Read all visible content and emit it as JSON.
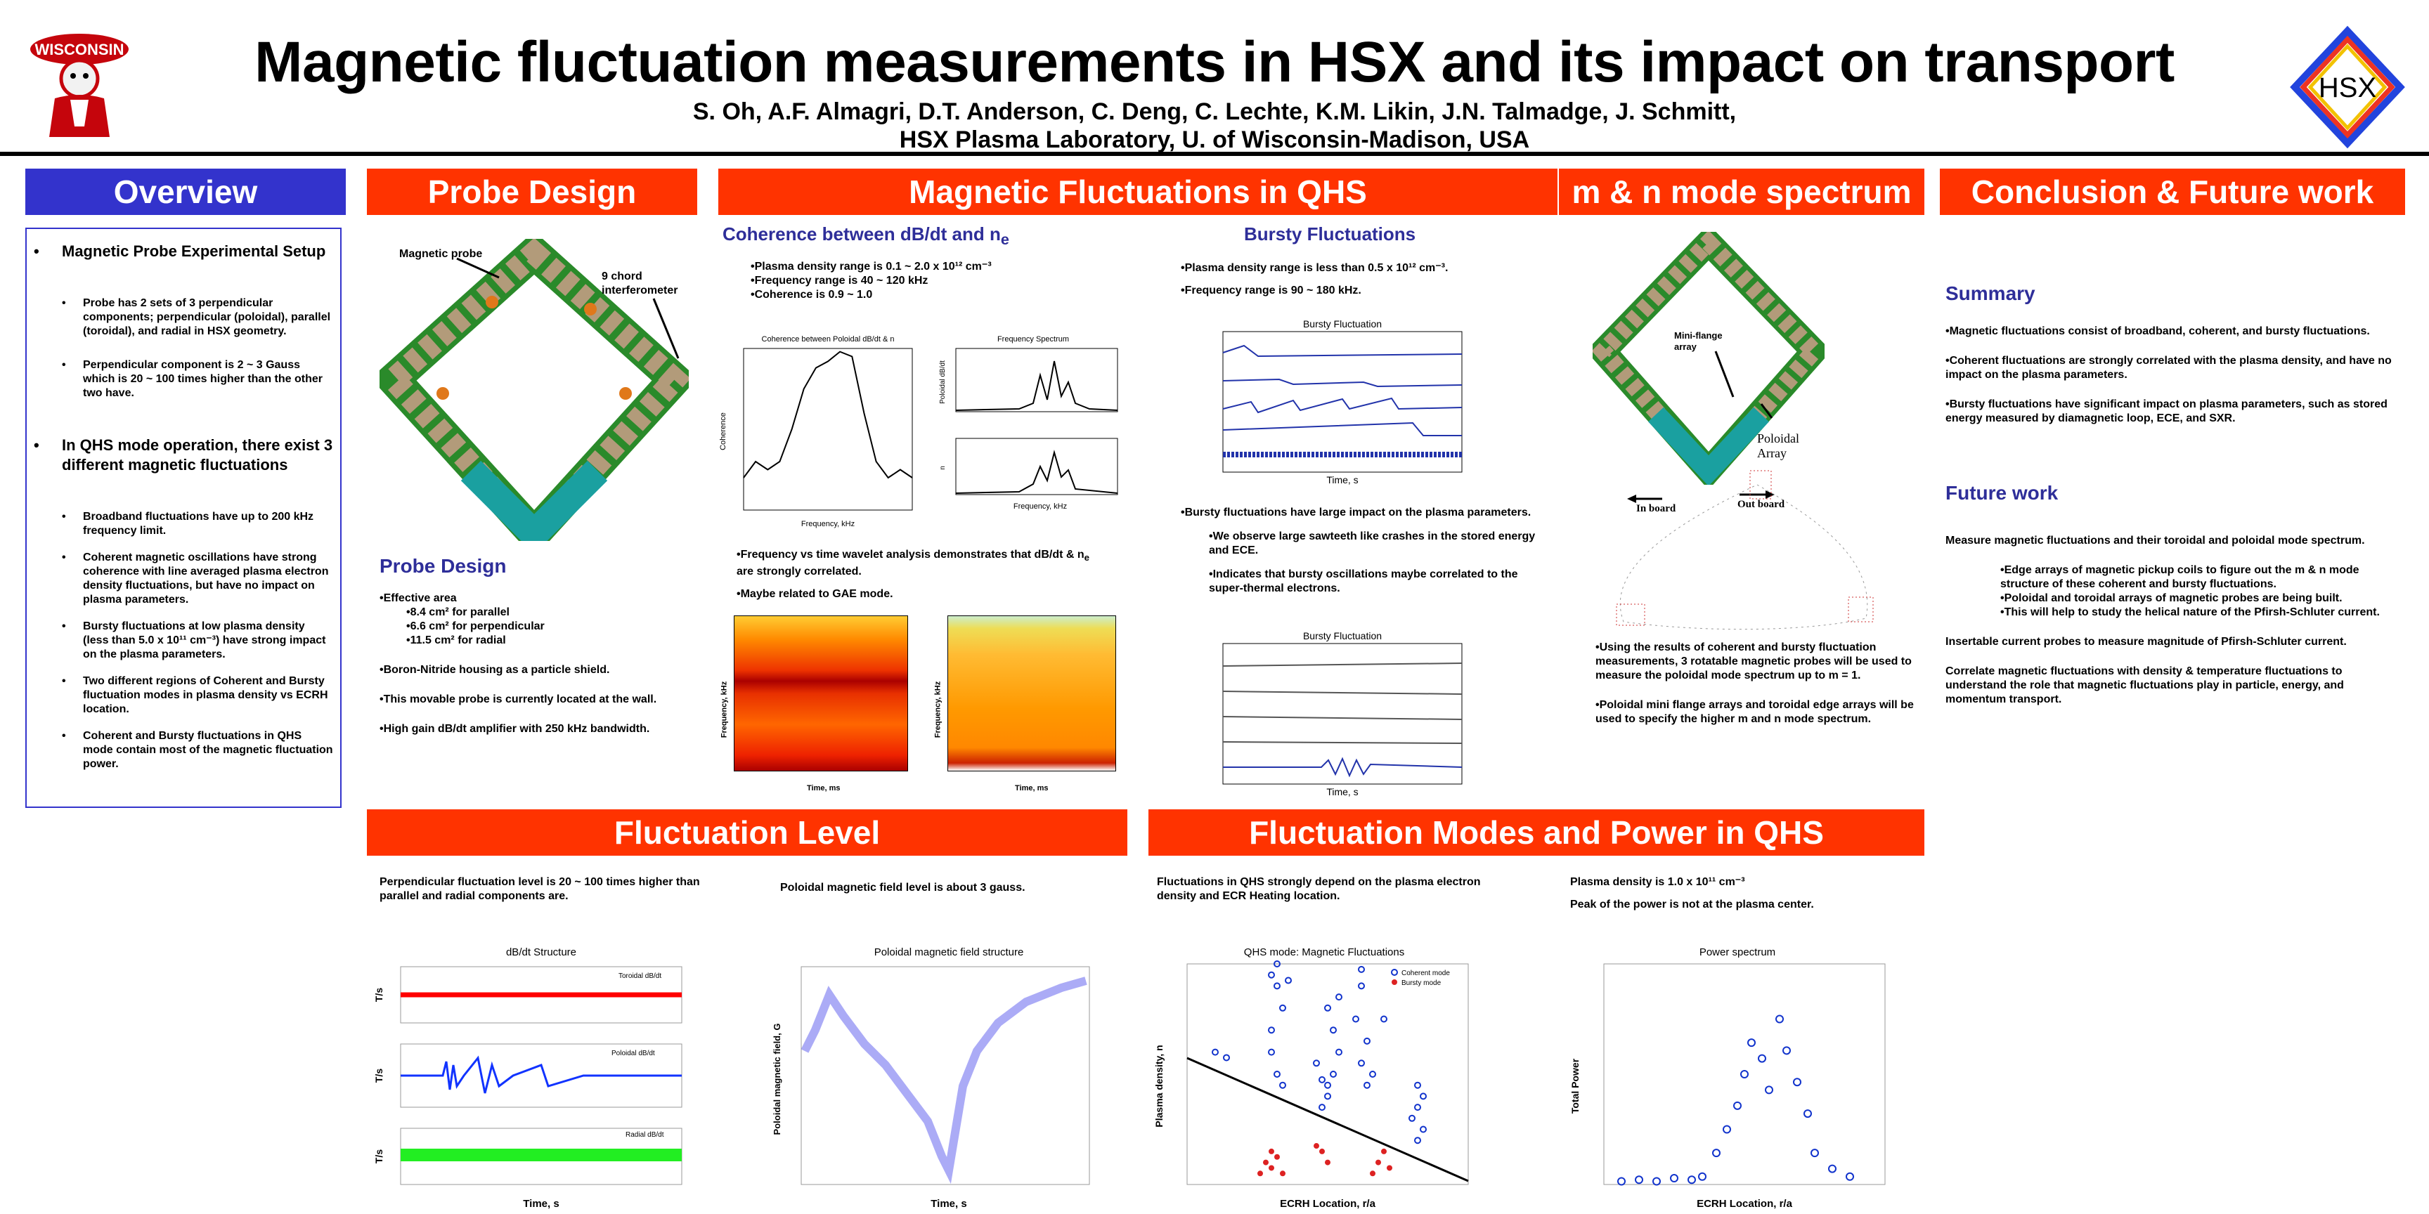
{
  "header": {
    "title": "Magnetic fluctuation measurements in HSX and its impact on transport",
    "authors": "S. Oh, A.F. Almagri, D.T. Anderson, C. Deng, C. Lechte, K.M. Likin, J.N. Talmadge, J. Schmitt,",
    "affiliation": "HSX Plasma Laboratory, U. of Wisconsin-Madison, USA",
    "logo_left_text": "WISCONSIN",
    "logo_right_text": "HSX"
  },
  "sections": {
    "overview": "Overview",
    "probe": "Probe Design",
    "qhs": "Magnetic Fluctuations in QHS",
    "mn": "m & n mode spectrum",
    "concl": "Conclusion & Future work",
    "level": "Fluctuation Level",
    "modes": "Fluctuation Modes and Power in QHS"
  },
  "overview": {
    "h1": "Magnetic Probe Experimental Setup",
    "b1": "Probe has 2 sets of 3 perpendicular components; perpendicular (poloidal), parallel (toroidal), and radial in HSX geometry.",
    "b2": "Perpendicular component is 2 ~ 3 Gauss which is 20 ~ 100 times higher than the other two have.",
    "h2": "In QHS mode operation, there exist 3 different magnetic fluctuations",
    "b3": "Broadband fluctuations have up to 200 kHz frequency limit.",
    "b4": "Coherent magnetic oscillations have strong coherence with line averaged plasma electron density fluctuations, but have no impact on plasma parameters.",
    "b5": "Bursty fluctuations at low plasma density (less than 5.0 x 10¹¹ cm⁻³) have strong impact on the plasma parameters.",
    "b6": "Two different regions of Coherent and Bursty fluctuation modes in plasma density vs ECRH location.",
    "b7": "Coherent and Bursty fluctuations in QHS mode contain most of the magnetic fluctuation power."
  },
  "probe": {
    "label_probe": "Magnetic probe",
    "label_chord": "9 chord interferometer",
    "sub": "Probe Design",
    "area": "•Effective area",
    "a1": "•8.4 cm² for parallel",
    "a2": "•6.6 cm² for perpendicular",
    "a3": "•11.5 cm² for radial",
    "p1": "•Boron-Nitride housing as a particle shield.",
    "p2": "•This movable probe is currently located at the wall.",
    "p3": "•High gain dB/dt amplifier with 250 kHz bandwidth."
  },
  "qhs": {
    "sub1": "Coherence between dB/dt and n",
    "sub1_sub": "e",
    "c1": "•Plasma density range is 0.1 ~ 2.0 x 10¹² cm⁻³",
    "c2": "•Frequency range is 40 ~ 120 kHz",
    "c3": "•Coherence is 0.9 ~ 1.0",
    "w1": "•Frequency vs time wavelet analysis demonstrates that dB/dt & n",
    "w1_sub": "e",
    "w2": "are strongly correlated.",
    "w3": "•Maybe related to GAE mode.",
    "coh_title": "Coherence between Poloidal dB/dt & n",
    "coh_xlabel": "Frequency, kHz",
    "coh_ylabel": "Coherence",
    "fs_title": "Frequency Spectrum",
    "fs_xlabel": "Frequency, kHz",
    "fs_ylabel1": "Poloidal dB/dt",
    "fs_ylabel2": "n",
    "wav_xlabel": "Time, ms",
    "wav_ylabel": "Frequency, kHz",
    "sub2": "Bursty Fluctuations",
    "d1": "•Plasma density range is less than 0.5 x 10¹² cm⁻³.",
    "d2": "•Frequency range is 90 ~ 180 kHz.",
    "burst_title": "Bursty Fluctuation",
    "burst_xlabel": "Time, s",
    "e1": "•Bursty fluctuations have large impact on the plasma parameters.",
    "e2": "•We observe large sawteeth like crashes in the stored energy and ECE.",
    "e3": "•Indicates that bursty oscillations maybe correlated to the super-thermal electrons."
  },
  "mn": {
    "label_mini": "Mini-flange array",
    "label_pol": "Poloidal Array",
    "label_in": "In board",
    "label_out": "Out board",
    "t1": "•Using the results of coherent and bursty fluctuation measurements, 3 rotatable magnetic probes will be used to measure the poloidal mode spectrum up to m = 1.",
    "t2": "•Poloidal mini flange arrays and toroidal edge arrays will be used to specify the higher m and n mode spectrum."
  },
  "concl": {
    "sub1": "Summary",
    "s1": "•Magnetic fluctuations consist of broadband, coherent, and bursty fluctuations.",
    "s2": "•Coherent fluctuations are strongly correlated with the plasma density, and have no impact on the plasma parameters.",
    "s3": "•Bursty fluctuations have significant impact on plasma parameters, such as stored energy measured by diamagnetic loop, ECE, and SXR.",
    "sub2": "Future work",
    "f1": "Measure magnetic fluctuations and their toroidal and poloidal mode spectrum.",
    "f2": "•Edge arrays of magnetic pickup coils to figure out the m & n mode structure of these coherent and bursty fluctuations.",
    "f3": "•Poloidal and toroidal arrays of magnetic probes are being built.",
    "f4": "•This will help to study the helical nature of the Pfirsh-Schluter current.",
    "f5": "Insertable current probes to measure magnitude of Pfirsh-Schluter current.",
    "f6": "Correlate magnetic fluctuations with density & temperature fluctuations to understand the role that magnetic fluctuations play in particle, energy, and momentum transport."
  },
  "level": {
    "t1": "Perpendicular fluctuation level is 20 ~ 100 times higher than parallel and radial components are.",
    "t2": "Poloidal magnetic field level is about 3 gauss.",
    "dbdt_title": "dB/dt Structure",
    "leg1": "Toroidal dB/dt",
    "leg2": "Poloidal dB/dt",
    "leg3": "Radial dB/dt",
    "ylab": "T/s",
    "xlab": "Time, s",
    "pol_title": "Poloidal magnetic field structure",
    "pol_ylabel": "Poloidal magnetic field, G",
    "pol_xlabel": "Time, s"
  },
  "modes": {
    "t1": "Fluctuations in QHS strongly depend on the plasma electron density and ECR Heating location.",
    "t2": "Plasma density is 1.0 x 10¹¹ cm⁻³",
    "t3": "Peak of the power is not at the plasma center.",
    "qhs_title": "QHS mode: Magnetic Fluctuations",
    "qhs_xlabel": "ECRH Location, r/a",
    "qhs_ylabel": "Plasma density, n",
    "leg_coh": "Coherent mode",
    "leg_bur": "Bursty mode",
    "pow_title": "Power spectrum",
    "pow_xlabel": "ECRH Location, r/a",
    "pow_ylabel": "Total Power"
  },
  "colors": {
    "blue_bar": "#3333cc",
    "red_bar": "#ff3300",
    "subhead": "#2e2e99"
  },
  "chart_data": [
    {
      "type": "line",
      "title": "Coherence between Poloidal dB/dt & n",
      "xlabel": "Frequency, kHz",
      "ylabel": "Coherence",
      "x": [
        0,
        10,
        20,
        30,
        40,
        50,
        60,
        70,
        80,
        90,
        100,
        110,
        120,
        130,
        140
      ],
      "values": [
        0.2,
        0.3,
        0.25,
        0.3,
        0.5,
        0.75,
        0.88,
        0.92,
        0.98,
        0.95,
        0.6,
        0.3,
        0.2,
        0.25,
        0.2
      ],
      "xlim": [
        0,
        140
      ],
      "ylim": [
        0,
        1
      ]
    },
    {
      "type": "scatter",
      "title": "QHS mode: Magnetic Fluctuations",
      "xlabel": "ECRH Location, r/a",
      "ylabel": "Plasma density, n",
      "xlim": [
        -0.25,
        0.25
      ],
      "ylim": [
        0,
        2
      ],
      "series": [
        {
          "name": "Coherent mode",
          "x": [
            -0.2,
            -0.18,
            -0.1,
            -0.09,
            -0.08,
            -0.1,
            -0.1,
            -0.09,
            -0.08,
            -0.02,
            -0.01,
            0,
            0.01,
            0,
            -0.01,
            0.02,
            0.01,
            0,
            0.05,
            0.06,
            0.07,
            0.06,
            0.08,
            0.07,
            0.16,
            0.17,
            0.16,
            0.15,
            0.17,
            0.16,
            -0.09,
            -0.07,
            0.02,
            0.06,
            0.1
          ],
          "y": [
            1.2,
            1.15,
            1.9,
            1.8,
            1.6,
            1.4,
            1.2,
            1.0,
            0.9,
            1.1,
            0.95,
            0.9,
            1.0,
            0.8,
            0.7,
            1.2,
            1.4,
            1.6,
            1.5,
            1.8,
            1.3,
            1.1,
            1.0,
            0.9,
            0.9,
            0.8,
            0.7,
            0.6,
            0.5,
            0.4,
            2.0,
            1.85,
            1.7,
            1.95,
            1.5
          ]
        },
        {
          "name": "Bursty mode",
          "x": [
            -0.12,
            -0.11,
            -0.1,
            -0.1,
            -0.09,
            -0.08,
            -0.02,
            -0.01,
            0,
            0.08,
            0.09,
            0.1,
            0.11
          ],
          "y": [
            0.1,
            0.2,
            0.15,
            0.3,
            0.25,
            0.1,
            0.35,
            0.3,
            0.2,
            0.1,
            0.2,
            0.3,
            0.15
          ]
        }
      ]
    },
    {
      "type": "scatter",
      "title": "Power spectrum",
      "xlabel": "ECRH Location, r/a",
      "ylabel": "Total Power",
      "xlim": [
        -0.4,
        0.4
      ],
      "ylim": [
        0,
        1.4
      ],
      "x": [
        -0.35,
        -0.3,
        -0.25,
        -0.2,
        -0.15,
        -0.12,
        -0.08,
        -0.05,
        -0.02,
        0,
        0.02,
        0.05,
        0.07,
        0.1,
        0.12,
        0.15,
        0.18,
        0.2,
        0.25,
        0.3
      ],
      "values": [
        0.02,
        0.03,
        0.02,
        0.04,
        0.03,
        0.05,
        0.2,
        0.35,
        0.5,
        0.7,
        0.9,
        0.8,
        0.6,
        1.05,
        0.85,
        0.65,
        0.45,
        0.2,
        0.1,
        0.05
      ]
    }
  ]
}
